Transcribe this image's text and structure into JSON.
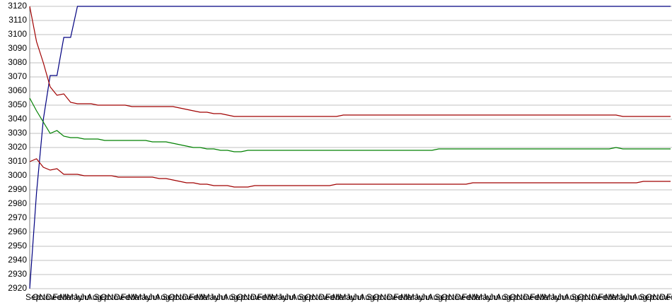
{
  "chart_data": {
    "type": "line",
    "categories": [
      "Sep",
      "Oct",
      "Nov",
      "Dec",
      "Feb",
      "Mar",
      "May",
      "Jun",
      "Jul",
      "Aug",
      "Sep",
      "Oct",
      "Nov",
      "Dec",
      "Feb",
      "Mar",
      "May",
      "Jun",
      "Jul",
      "Aug",
      "Sep",
      "Oct",
      "Nov",
      "Dec",
      "Feb",
      "Mar",
      "May",
      "Jun",
      "Jul",
      "Aug",
      "Sep",
      "Oct",
      "Nov",
      "Dec",
      "Feb",
      "Mar",
      "May",
      "Jun",
      "Jul",
      "Aug",
      "Sep",
      "Oct",
      "Nov",
      "Dec",
      "Feb",
      "Mar",
      "May",
      "Jun",
      "Jul",
      "Aug",
      "Sep",
      "Oct",
      "Nov",
      "Dec",
      "Feb",
      "Mar",
      "May",
      "Jun",
      "Jul",
      "Aug",
      "Sep",
      "Oct",
      "Nov",
      "Dec",
      "Feb",
      "Mar",
      "May",
      "Jun",
      "Jul",
      "Aug",
      "Sep",
      "Oct",
      "Nov",
      "Dec",
      "Feb",
      "Mar",
      "May",
      "Jun",
      "Jul",
      "Aug",
      "Sep",
      "Oct",
      "Nov",
      "Dec",
      "Feb",
      "Mar",
      "May",
      "Jun",
      "Jul",
      "Aug",
      "Sep",
      "Oct",
      "Nov",
      "Dec",
      "Feb"
    ],
    "series": [
      {
        "color": "#000080",
        "values": [
          2920,
          2988,
          3040,
          3071,
          3071,
          3098,
          3098,
          3120,
          3120,
          3120,
          3120,
          3120,
          3120,
          3120,
          3120,
          3120,
          3120,
          3120,
          3120,
          3120,
          3120,
          3120,
          3120,
          3120,
          3120,
          3120,
          3120,
          3120,
          3120,
          3120,
          3120,
          3120,
          3120,
          3120,
          3120,
          3120,
          3120,
          3120,
          3120,
          3120,
          3120,
          3120,
          3120,
          3120,
          3120,
          3120,
          3120,
          3120,
          3120,
          3120,
          3120,
          3120,
          3120,
          3120,
          3120,
          3120,
          3120,
          3120,
          3120,
          3120,
          3120,
          3120,
          3120,
          3120,
          3120,
          3120,
          3120,
          3120,
          3120,
          3120,
          3120,
          3120,
          3120,
          3120,
          3120,
          3120,
          3120,
          3120,
          3120,
          3120,
          3120,
          3120,
          3120,
          3120,
          3120,
          3120,
          3120,
          3120,
          3120,
          3120,
          3120,
          3120,
          3120,
          3120,
          3120
        ]
      },
      {
        "color": "#a00000",
        "values": [
          3120,
          3095,
          3080,
          3063,
          3057,
          3058,
          3052,
          3051,
          3051,
          3051,
          3050,
          3050,
          3050,
          3050,
          3050,
          3049,
          3049,
          3049,
          3049,
          3049,
          3049,
          3049,
          3048,
          3047,
          3046,
          3045,
          3045,
          3044,
          3044,
          3043,
          3042,
          3042,
          3042,
          3042,
          3042,
          3042,
          3042,
          3042,
          3042,
          3042,
          3042,
          3042,
          3042,
          3042,
          3042,
          3042,
          3043,
          3043,
          3043,
          3043,
          3043,
          3043,
          3043,
          3043,
          3043,
          3043,
          3043,
          3043,
          3043,
          3043,
          3043,
          3043,
          3043,
          3043,
          3043,
          3043,
          3043,
          3043,
          3043,
          3043,
          3043,
          3043,
          3043,
          3043,
          3043,
          3043,
          3043,
          3043,
          3043,
          3043,
          3043,
          3043,
          3043,
          3043,
          3043,
          3043,
          3043,
          3042,
          3042,
          3042,
          3042,
          3042,
          3042,
          3042,
          3042
        ]
      },
      {
        "color": "#008000",
        "values": [
          3055,
          3046,
          3038,
          3030,
          3032,
          3028,
          3027,
          3027,
          3026,
          3026,
          3026,
          3025,
          3025,
          3025,
          3025,
          3025,
          3025,
          3025,
          3024,
          3024,
          3024,
          3023,
          3022,
          3021,
          3020,
          3020,
          3019,
          3019,
          3018,
          3018,
          3017,
          3017,
          3018,
          3018,
          3018,
          3018,
          3018,
          3018,
          3018,
          3018,
          3018,
          3018,
          3018,
          3018,
          3018,
          3018,
          3018,
          3018,
          3018,
          3018,
          3018,
          3018,
          3018,
          3018,
          3018,
          3018,
          3018,
          3018,
          3018,
          3018,
          3019,
          3019,
          3019,
          3019,
          3019,
          3019,
          3019,
          3019,
          3019,
          3019,
          3019,
          3019,
          3019,
          3019,
          3019,
          3019,
          3019,
          3019,
          3019,
          3019,
          3019,
          3019,
          3019,
          3019,
          3019,
          3019,
          3020,
          3019,
          3019,
          3019,
          3019,
          3019,
          3019,
          3019,
          3019
        ]
      },
      {
        "color": "#a00000",
        "values": [
          3010,
          3012,
          3006,
          3004,
          3005,
          3001,
          3001,
          3001,
          3000,
          3000,
          3000,
          3000,
          3000,
          2999,
          2999,
          2999,
          2999,
          2999,
          2999,
          2998,
          2998,
          2997,
          2996,
          2995,
          2995,
          2994,
          2994,
          2993,
          2993,
          2993,
          2992,
          2992,
          2992,
          2993,
          2993,
          2993,
          2993,
          2993,
          2993,
          2993,
          2993,
          2993,
          2993,
          2993,
          2993,
          2994,
          2994,
          2994,
          2994,
          2994,
          2994,
          2994,
          2994,
          2994,
          2994,
          2994,
          2994,
          2994,
          2994,
          2994,
          2994,
          2994,
          2994,
          2994,
          2994,
          2995,
          2995,
          2995,
          2995,
          2995,
          2995,
          2995,
          2995,
          2995,
          2995,
          2995,
          2995,
          2995,
          2995,
          2995,
          2995,
          2995,
          2995,
          2995,
          2995,
          2995,
          2995,
          2995,
          2995,
          2995,
          2996,
          2996,
          2996,
          2996,
          2996
        ]
      }
    ],
    "ylim": [
      2920,
      3120
    ],
    "yticks": [
      2920,
      2930,
      2940,
      2950,
      2960,
      2970,
      2980,
      2990,
      3000,
      3010,
      3020,
      3030,
      3040,
      3050,
      3060,
      3070,
      3080,
      3090,
      3100,
      3110,
      3120
    ],
    "grid": true
  }
}
